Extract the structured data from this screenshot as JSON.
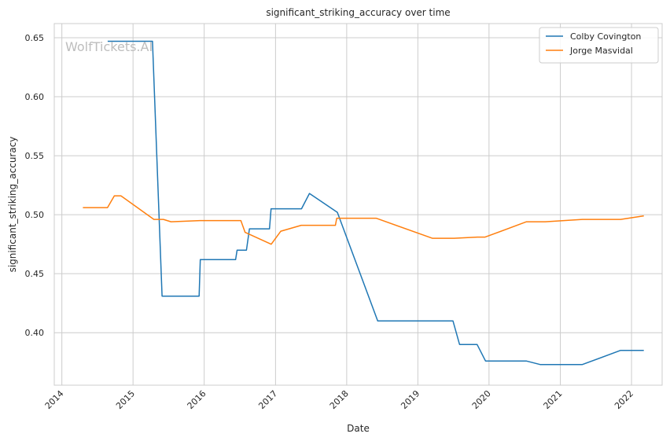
{
  "chart_data": {
    "type": "line",
    "title": "significant_striking_accuracy over time",
    "xlabel": "Date",
    "ylabel": "significant_striking_accuracy",
    "watermark": "WolfTickets.AI",
    "x_range": [
      "2013-11-23",
      "2022-06-07"
    ],
    "ylim": [
      0.3555,
      0.662
    ],
    "x_ticks": [
      "2014",
      "2015",
      "2016",
      "2017",
      "2018",
      "2019",
      "2020",
      "2021",
      "2022"
    ],
    "y_ticks": [
      "0.40",
      "0.45",
      "0.50",
      "0.55",
      "0.60",
      "0.65"
    ],
    "grid": true,
    "legend_position": "top-right",
    "series": [
      {
        "name": "Colby Covington",
        "color": "#1f77b4",
        "points": [
          [
            "2014-08-24",
            0.647
          ],
          [
            "2015-04-11",
            0.647
          ],
          [
            "2015-05-30",
            0.431
          ],
          [
            "2015-12-06",
            0.431
          ],
          [
            "2015-12-12",
            0.462
          ],
          [
            "2016-06-10",
            0.462
          ],
          [
            "2016-06-18",
            0.47
          ],
          [
            "2016-08-05",
            0.47
          ],
          [
            "2016-08-20",
            0.488
          ],
          [
            "2016-12-01",
            0.488
          ],
          [
            "2016-12-09",
            0.505
          ],
          [
            "2017-05-14",
            0.505
          ],
          [
            "2017-06-24",
            0.518
          ],
          [
            "2017-11-14",
            0.502
          ],
          [
            "2018-06-09",
            0.41
          ],
          [
            "2019-06-30",
            0.41
          ],
          [
            "2019-08-03",
            0.39
          ],
          [
            "2019-11-01",
            0.39
          ],
          [
            "2019-12-14",
            0.376
          ],
          [
            "2020-07-10",
            0.376
          ],
          [
            "2020-09-19",
            0.373
          ],
          [
            "2021-04-24",
            0.373
          ],
          [
            "2021-11-06",
            0.385
          ],
          [
            "2022-03-05",
            0.385
          ]
        ]
      },
      {
        "name": "Jorge Masvidal",
        "color": "#ff7f0e",
        "points": [
          [
            "2014-04-19",
            0.506
          ],
          [
            "2014-08-23",
            0.506
          ],
          [
            "2014-09-27",
            0.516
          ],
          [
            "2014-10-31",
            0.516
          ],
          [
            "2015-04-18",
            0.496
          ],
          [
            "2015-06-06",
            0.496
          ],
          [
            "2015-07-15",
            0.494
          ],
          [
            "2015-12-10",
            0.495
          ],
          [
            "2016-07-07",
            0.495
          ],
          [
            "2016-07-29",
            0.485
          ],
          [
            "2016-12-10",
            0.475
          ],
          [
            "2017-01-28",
            0.486
          ],
          [
            "2017-05-13",
            0.491
          ],
          [
            "2017-11-04",
            0.491
          ],
          [
            "2017-11-11",
            0.497
          ],
          [
            "2018-06-01",
            0.497
          ],
          [
            "2019-03-16",
            0.48
          ],
          [
            "2019-07-06",
            0.48
          ],
          [
            "2019-11-02",
            0.481
          ],
          [
            "2019-12-12",
            0.481
          ],
          [
            "2020-07-11",
            0.494
          ],
          [
            "2020-10-15",
            0.494
          ],
          [
            "2021-04-24",
            0.496
          ],
          [
            "2021-11-06",
            0.496
          ],
          [
            "2022-03-05",
            0.499
          ]
        ]
      }
    ]
  }
}
